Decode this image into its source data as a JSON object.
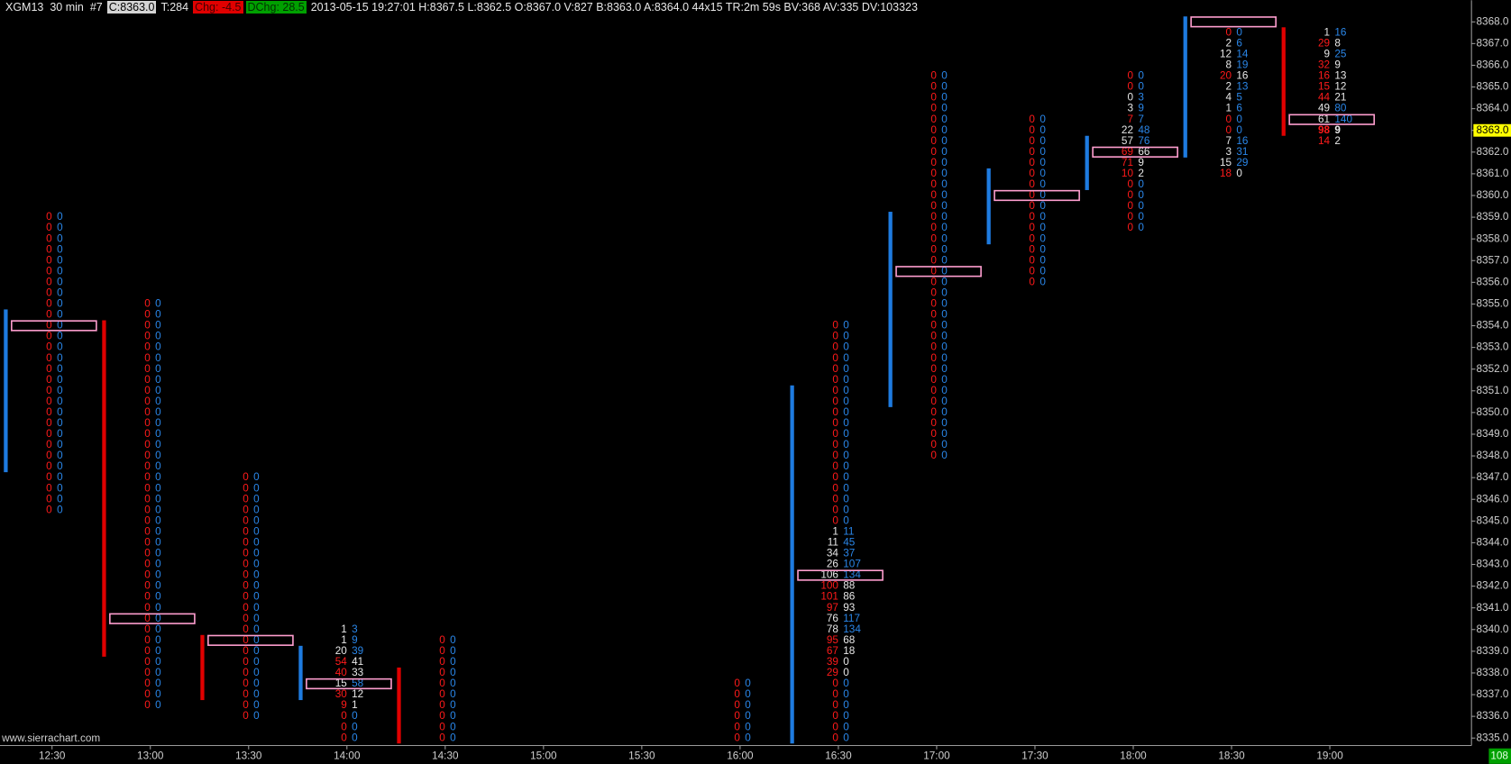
{
  "header": [
    {
      "text": "XGM13  30 min"
    },
    {
      "text": "#7"
    },
    {
      "text": "C:8363.0",
      "background": "#d4d4d4",
      "color": "#000000"
    },
    {
      "text": "T:284"
    },
    {
      "text": "Chg: -4.5",
      "background": "#e00000",
      "color": "#400000"
    },
    {
      "text": "DChg: 28.5",
      "background": "#00a000",
      "color": "#003000"
    },
    {
      "text": "2013-05-15 19:27:01 H:8367.5 L:8362.5 O:8367.0 V:827 B:8363.0 A:8364.0 44x15 TR:2m 59s BV:368 AV:335 DV:103323"
    }
  ],
  "footer": "www.sierrachart.com",
  "chart_data": {
    "type": "footprint",
    "categories": [
      "12:30",
      "13:00",
      "13:30",
      "14:00",
      "14:30",
      "15:00",
      "15:30",
      "16:00",
      "16:30",
      "17:00",
      "17:30",
      "18:00",
      "18:30",
      "19:00"
    ],
    "ylim": [
      8334.7,
      8369.0
    ],
    "yticks": [
      {
        "value": 8335,
        "label": "8335.0"
      },
      {
        "value": 8336,
        "label": "8336.0"
      },
      {
        "value": 8337,
        "label": "8337.0"
      },
      {
        "value": 8338,
        "label": "8338.0"
      },
      {
        "value": 8339,
        "label": "8339.0"
      },
      {
        "value": 8340,
        "label": "8340.0"
      },
      {
        "value": 8341,
        "label": "8341.0"
      },
      {
        "value": 8342,
        "label": "8342.0"
      },
      {
        "value": 8343,
        "label": "8343.0"
      },
      {
        "value": 8344,
        "label": "8344.0"
      },
      {
        "value": 8345,
        "label": "8345.0"
      },
      {
        "value": 8346,
        "label": "8346.0"
      },
      {
        "value": 8347,
        "label": "8347.0"
      },
      {
        "value": 8348,
        "label": "8348.0"
      },
      {
        "value": 8349,
        "label": "8349.0"
      },
      {
        "value": 8350,
        "label": "8350.0"
      },
      {
        "value": 8351,
        "label": "8351.0"
      },
      {
        "value": 8352,
        "label": "8352.0"
      },
      {
        "value": 8353,
        "label": "8353.0"
      },
      {
        "value": 8354,
        "label": "8354.0"
      },
      {
        "value": 8355,
        "label": "8355.0"
      },
      {
        "value": 8356,
        "label": "8356.0"
      },
      {
        "value": 8357,
        "label": "8357.0"
      },
      {
        "value": 8358,
        "label": "8358.0"
      },
      {
        "value": 8359,
        "label": "8359.0"
      },
      {
        "value": 8360,
        "label": "8360.0"
      },
      {
        "value": 8361,
        "label": "8361.0"
      },
      {
        "value": 8362,
        "label": "8362.0"
      },
      {
        "value": 8363,
        "label": "8363.0"
      },
      {
        "value": 8364,
        "label": "8364.0"
      },
      {
        "value": 8365,
        "label": "8365.0"
      },
      {
        "value": 8366,
        "label": "8366.0"
      },
      {
        "value": 8367,
        "label": "8367.0"
      },
      {
        "value": 8368,
        "label": "8368.0"
      }
    ],
    "current_price": {
      "value": 8363,
      "label": "8363.0"
    },
    "status": "108",
    "tick_size": 0.5,
    "up_color": "#1e7be0",
    "down_color": "#e00000",
    "poc_color": "#ff9ecf",
    "bid_color": "#ff1a1a",
    "ask_color": "#2a86e8",
    "neutral_color": "#e8e8e8",
    "periods": [
      {
        "high": 8354.5,
        "low": 8347.5,
        "up": true,
        "poc": 8354.0,
        "top": 8359.0,
        "bid": [
          0,
          0,
          0,
          0,
          0,
          0,
          0,
          0,
          0,
          0,
          0,
          0,
          0,
          0,
          0,
          0,
          0,
          0,
          0,
          0,
          0,
          0,
          0,
          0,
          0,
          0,
          0,
          0
        ],
        "ask": [
          0,
          0,
          0,
          0,
          0,
          0,
          0,
          0,
          0,
          0,
          0,
          0,
          0,
          0,
          0,
          0,
          0,
          0,
          0,
          0,
          0,
          0,
          0,
          0,
          0,
          0,
          0,
          0
        ]
      },
      {
        "high": 8354.0,
        "low": 8339.0,
        "up": false,
        "poc": 8340.5,
        "top": 8355.0,
        "bid": [
          0,
          0,
          0,
          0,
          0,
          0,
          0,
          0,
          0,
          0,
          0,
          0,
          0,
          0,
          0,
          0,
          0,
          0,
          0,
          0,
          0,
          0,
          0,
          0,
          0,
          0,
          0,
          0,
          0,
          0,
          0,
          0,
          0,
          0,
          0,
          0,
          0,
          0
        ],
        "ask": [
          0,
          0,
          0,
          0,
          0,
          0,
          0,
          0,
          0,
          0,
          0,
          0,
          0,
          0,
          0,
          0,
          0,
          0,
          0,
          0,
          0,
          0,
          0,
          0,
          0,
          0,
          0,
          0,
          0,
          0,
          0,
          0,
          0,
          0,
          0,
          0,
          0,
          0
        ]
      },
      {
        "high": 8339.5,
        "low": 8337.0,
        "up": false,
        "poc": 8339.5,
        "top": 8347.0,
        "bid": [
          0,
          0,
          0,
          0,
          0,
          0,
          0,
          0,
          0,
          0,
          0,
          0,
          0,
          0,
          0,
          0,
          0,
          0,
          0,
          0,
          0,
          0,
          0
        ],
        "ask": [
          0,
          0,
          0,
          0,
          0,
          0,
          0,
          0,
          0,
          0,
          0,
          0,
          0,
          0,
          0,
          0,
          0,
          0,
          0,
          0,
          0,
          0,
          0
        ]
      },
      {
        "high": 8339.0,
        "low": 8337.0,
        "up": true,
        "poc": 8337.5,
        "top": 8340.0,
        "bid": [
          1,
          1,
          20,
          54,
          40,
          15,
          30,
          9,
          0,
          0,
          0
        ],
        "ask": [
          3,
          9,
          39,
          41,
          33,
          58,
          12,
          1,
          0,
          0,
          0
        ]
      },
      {
        "high": 8338.0,
        "low": 8335.0,
        "up": false,
        "top": 8339.5,
        "bid": [
          0,
          0,
          0,
          0,
          0,
          0,
          0,
          0,
          0,
          0
        ],
        "ask": [
          0,
          0,
          0,
          0,
          0,
          0,
          0,
          0,
          0,
          0
        ]
      },
      null,
      null,
      {
        "top": 8337.5,
        "bid": [
          0,
          0,
          0,
          0,
          0,
          0
        ],
        "ask": [
          0,
          0,
          0,
          0,
          0,
          0
        ]
      },
      {
        "high": 8351.0,
        "low": 8335.0,
        "up": true,
        "poc": 8342.5,
        "top": 8354.0,
        "bid": [
          0,
          0,
          0,
          0,
          0,
          0,
          0,
          0,
          0,
          0,
          0,
          0,
          0,
          0,
          0,
          0,
          0,
          0,
          0,
          1,
          11,
          34,
          26,
          106,
          100,
          101,
          97,
          76,
          78,
          95,
          67,
          39,
          29,
          0,
          0,
          0,
          0,
          0,
          0
        ],
        "ask": [
          0,
          0,
          0,
          0,
          0,
          0,
          0,
          0,
          0,
          0,
          0,
          0,
          0,
          0,
          0,
          0,
          0,
          0,
          0,
          11,
          45,
          37,
          107,
          134,
          88,
          86,
          93,
          117,
          134,
          68,
          18,
          0,
          0,
          0,
          0,
          0,
          0,
          0,
          0
        ]
      },
      {
        "high": 8359.0,
        "low": 8350.5,
        "up": true,
        "poc": 8356.5,
        "top": 8365.5,
        "bid": [
          0,
          0,
          0,
          0,
          0,
          0,
          0,
          0,
          0,
          0,
          0,
          0,
          0,
          0,
          0,
          0,
          0,
          0,
          0,
          0,
          0,
          0,
          0,
          0,
          0,
          0,
          0,
          0,
          0,
          0,
          0,
          0,
          0,
          0,
          0,
          0
        ],
        "ask": [
          0,
          0,
          0,
          0,
          0,
          0,
          0,
          0,
          0,
          0,
          0,
          0,
          0,
          0,
          0,
          0,
          0,
          0,
          0,
          0,
          0,
          0,
          0,
          0,
          0,
          0,
          0,
          0,
          0,
          0,
          0,
          0,
          0,
          0,
          0,
          0
        ]
      },
      {
        "high": 8361.0,
        "low": 8358.0,
        "up": true,
        "poc": 8360.0,
        "top": 8363.5,
        "bid": [
          0,
          0,
          0,
          0,
          0,
          0,
          0,
          0,
          0,
          0,
          0,
          0,
          0,
          0,
          0,
          0
        ],
        "ask": [
          0,
          0,
          0,
          0,
          0,
          0,
          0,
          0,
          0,
          0,
          0,
          0,
          0,
          0,
          0,
          0
        ]
      },
      {
        "high": 8362.5,
        "low": 8360.5,
        "up": true,
        "poc": 8362.0,
        "top": 8365.5,
        "bid": [
          0,
          0,
          0,
          3,
          7,
          22,
          57,
          69,
          71,
          10,
          0,
          0,
          0,
          0,
          0
        ],
        "ask": [
          0,
          0,
          3,
          9,
          7,
          48,
          76,
          66,
          9,
          2,
          0,
          0,
          0,
          0,
          0
        ]
      },
      {
        "high": 8368.0,
        "low": 8362.0,
        "up": true,
        "poc": 8368.0,
        "top": 8367.5,
        "bid": [
          0,
          2,
          12,
          8,
          20,
          2,
          4,
          1,
          0,
          0,
          7,
          3,
          15,
          18
        ],
        "ask": [
          0,
          6,
          14,
          19,
          16,
          13,
          5,
          6,
          0,
          0,
          16,
          31,
          29,
          0
        ]
      },
      {
        "high": 8367.5,
        "low": 8363.0,
        "up": false,
        "poc": 8363.5,
        "top": 8367.5,
        "bid": [
          1,
          29,
          9,
          32,
          16,
          15,
          44,
          49,
          61,
          98,
          14
        ],
        "ask": [
          16,
          8,
          25,
          9,
          13,
          12,
          21,
          80,
          140,
          9,
          2
        ]
      }
    ]
  }
}
